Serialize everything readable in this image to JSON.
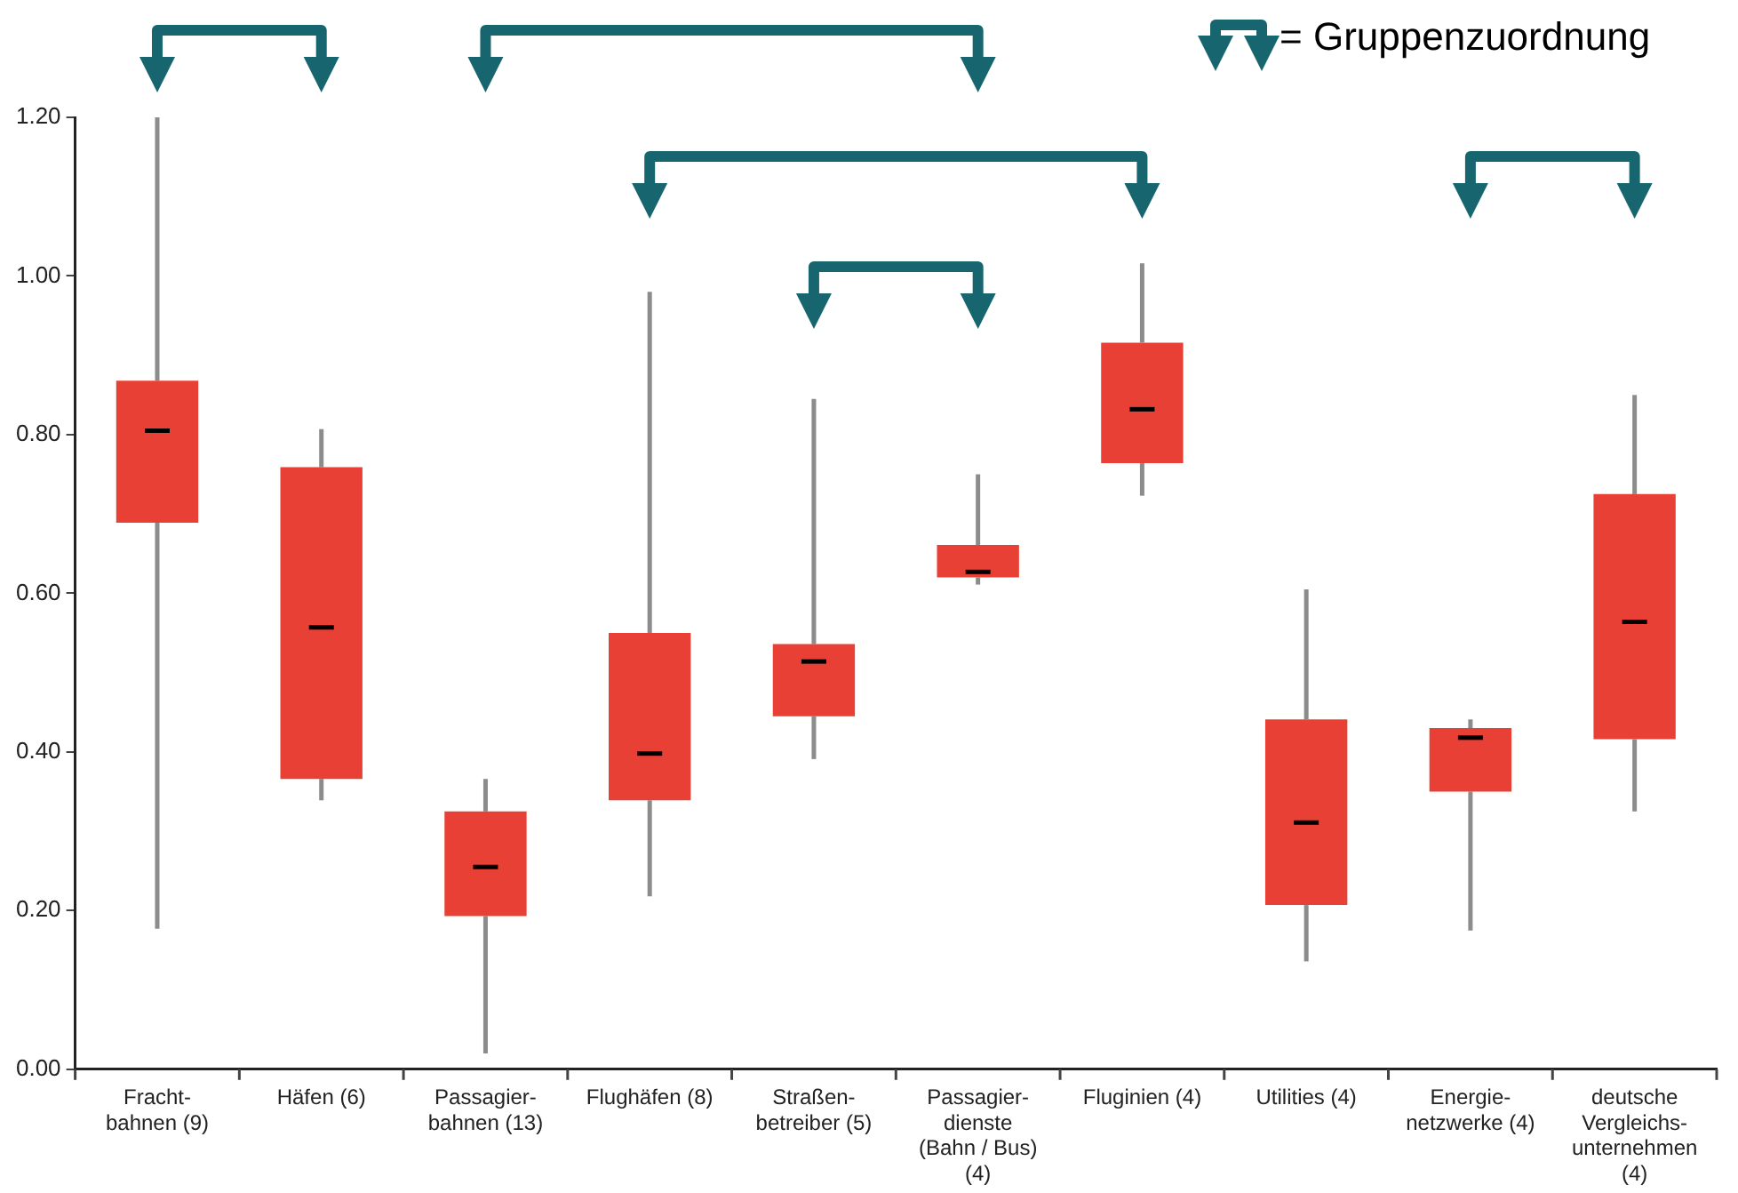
{
  "chart_data": {
    "type": "box",
    "categories": [
      "Fracht-\nbahnen (9)",
      "Häfen (6)",
      "Passagier-\nbahnen (13)",
      "Flughäfen (8)",
      "Straßen-\nbetreiber (5)",
      "Passagier-\ndienste\n(Bahn / Bus)\n(4)",
      "Fluginien (4)",
      "Utilities (4)",
      "Energie-\nnetzwerke (4)",
      "deutsche\nVergleichs-\nunternehmen\n(4)"
    ],
    "series": [
      {
        "color": "#e84034",
        "boxes": [
          {
            "low": 0.177,
            "q1": 0.689,
            "median": 0.805,
            "q3": 0.868,
            "high": 1.2
          },
          {
            "low": 0.339,
            "q1": 0.366,
            "median": 0.557,
            "q3": 0.759,
            "high": 0.807
          },
          {
            "low": 0.02,
            "q1": 0.193,
            "median": 0.255,
            "q3": 0.325,
            "high": 0.366
          },
          {
            "low": 0.218,
            "q1": 0.339,
            "median": 0.398,
            "q3": 0.55,
            "high": 0.98
          },
          {
            "low": 0.391,
            "q1": 0.445,
            "median": 0.514,
            "q3": 0.536,
            "high": 0.845
          },
          {
            "low": 0.611,
            "q1": 0.62,
            "median": 0.627,
            "q3": 0.661,
            "high": 0.75
          },
          {
            "low": 0.723,
            "q1": 0.764,
            "median": 0.832,
            "q3": 0.916,
            "high": 1.016
          },
          {
            "low": 0.136,
            "q1": 0.207,
            "median": 0.311,
            "q3": 0.441,
            "high": 0.605
          },
          {
            "low": 0.175,
            "q1": 0.35,
            "median": 0.418,
            "q3": 0.43,
            "high": 0.441
          },
          {
            "low": 0.325,
            "q1": 0.416,
            "median": 0.564,
            "q3": 0.725,
            "high": 0.85
          }
        ]
      }
    ],
    "ylim": [
      0,
      1.2
    ],
    "yticks": [
      {
        "value": 0,
        "label": "0.00"
      },
      {
        "value": 0.2,
        "label": "0.20"
      },
      {
        "value": 0.4,
        "label": "0.40"
      },
      {
        "value": 0.6,
        "label": "0.60"
      },
      {
        "value": 0.8,
        "label": "0.80"
      },
      {
        "value": 1,
        "label": "1.00"
      },
      {
        "value": 1.2,
        "label": "1.20"
      }
    ],
    "grid": false,
    "legend": false,
    "annotations": [
      "= Gruppenzuordnung"
    ]
  }
}
